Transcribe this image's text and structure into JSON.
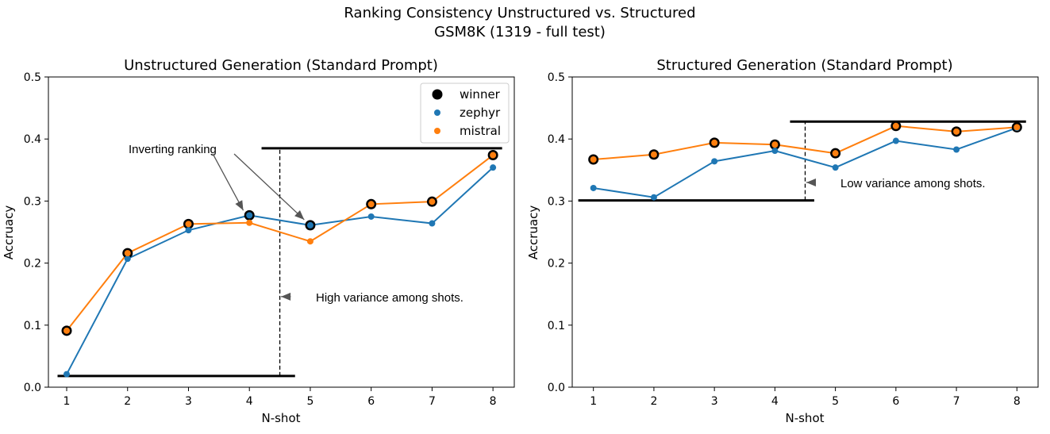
{
  "figure": {
    "title_line1": "Ranking Consistency Unstructured vs. Structured",
    "title_line2": "GSM8K (1319 - full test)"
  },
  "chart_data": [
    {
      "type": "line",
      "title": "Unstructured Generation (Standard Prompt)",
      "xlabel": "N-shot",
      "ylabel": "Accruacy",
      "x": [
        1,
        2,
        3,
        4,
        5,
        6,
        7,
        8
      ],
      "xlim": [
        0.7,
        8.35
      ],
      "ylim": [
        0.0,
        0.5
      ],
      "yticks": [
        0.0,
        0.1,
        0.2,
        0.3,
        0.4,
        0.5
      ],
      "ytick_labels": [
        "0.0",
        "0.1",
        "0.2",
        "0.3",
        "0.4",
        "0.5"
      ],
      "series": [
        {
          "name": "zephyr",
          "color": "#1f77b4",
          "values": [
            0.021,
            0.207,
            0.253,
            0.277,
            0.261,
            0.275,
            0.264,
            0.354
          ]
        },
        {
          "name": "mistral",
          "color": "#ff7f0e",
          "values": [
            0.091,
            0.216,
            0.263,
            0.265,
            0.235,
            0.295,
            0.299,
            0.374
          ]
        }
      ],
      "winner": {
        "name": "winner",
        "color": "#000000",
        "values": [
          0.091,
          0.216,
          0.263,
          0.277,
          0.261,
          0.295,
          0.299,
          0.374
        ]
      },
      "legend": {
        "position": "top-right",
        "entries": [
          "winner",
          "zephyr",
          "mistral"
        ]
      },
      "annotations": {
        "ranking_label": "Inverting ranking",
        "variance_label": "High variance among shots."
      },
      "guides": {
        "low_line": {
          "y": 0.018,
          "x_from": 0.85,
          "x_to": 4.75
        },
        "high_line": {
          "y": 0.385,
          "x_from": 4.2,
          "x_to": 8.15
        },
        "vline": {
          "x": 4.5,
          "y_from": 0.018,
          "y_to": 0.385
        },
        "ranking_arrows": [
          {
            "from_x": 3.4,
            "from_y": 0.376,
            "to_x": 3.9,
            "to_y": 0.285
          },
          {
            "from_x": 3.75,
            "from_y": 0.376,
            "to_x": 4.9,
            "to_y": 0.27
          }
        ],
        "variance_arrow": {
          "from_x": 4.68,
          "to_x": 4.52,
          "y": 0.146
        }
      }
    },
    {
      "type": "line",
      "title": "Structured Generation (Standard Prompt)",
      "xlabel": "N-shot",
      "ylabel": "Accruacy",
      "x": [
        1,
        2,
        3,
        4,
        5,
        6,
        7,
        8
      ],
      "xlim": [
        0.65,
        8.35
      ],
      "ylim": [
        0.0,
        0.5
      ],
      "yticks": [
        0.0,
        0.1,
        0.2,
        0.3,
        0.4,
        0.5
      ],
      "ytick_labels": [
        "0.0",
        "0.1",
        "0.2",
        "0.3",
        "0.4",
        "0.5"
      ],
      "series": [
        {
          "name": "zephyr",
          "color": "#1f77b4",
          "values": [
            0.321,
            0.306,
            0.364,
            0.381,
            0.354,
            0.397,
            0.383,
            0.418
          ]
        },
        {
          "name": "mistral",
          "color": "#ff7f0e",
          "values": [
            0.367,
            0.375,
            0.394,
            0.391,
            0.377,
            0.421,
            0.412,
            0.419
          ]
        }
      ],
      "winner": {
        "name": "winner",
        "color": "#000000",
        "values": [
          0.367,
          0.375,
          0.394,
          0.391,
          0.377,
          0.421,
          0.412,
          0.419
        ]
      },
      "annotations": {
        "variance_label": "Low variance among shots."
      },
      "guides": {
        "low_line": {
          "y": 0.301,
          "x_from": 0.75,
          "x_to": 4.65
        },
        "high_line": {
          "y": 0.428,
          "x_from": 4.25,
          "x_to": 8.15
        },
        "vline": {
          "x": 4.5,
          "y_from": 0.301,
          "y_to": 0.428
        },
        "variance_arrow": {
          "from_x": 4.65,
          "to_x": 4.52,
          "y": 0.33
        }
      }
    }
  ]
}
